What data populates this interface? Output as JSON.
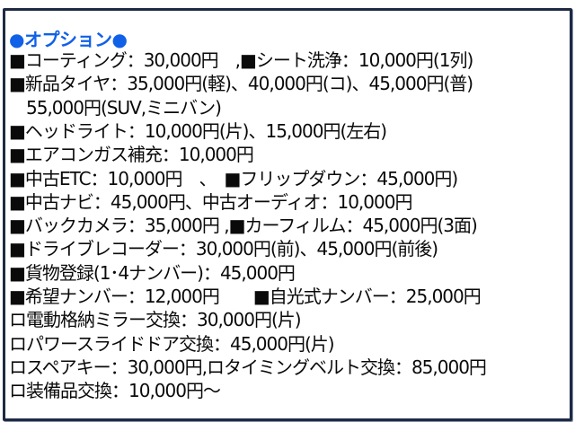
{
  "title": "●オプション●",
  "accent_color": "#1060e8",
  "lines": [
    "■コーティング：30,000円　,■シート洗浄：10,000円(1列)",
    "■新品タイヤ：35,000円(軽)、40,000円(コ)、45,000円(普)",
    "　55,000円(SUV,ミニバン)",
    "■ヘッドライト：10,000円(片)、15,000円(左右)",
    "■エアコンガス補充：10,000円",
    "■中古ETC：10,000円　、　■フリップダウン：45,000円)",
    "■中古ナビ：45,000円、中古オーディオ：10,000円",
    "■バックカメラ：35,000円 ,■カーフィルム：45,000円(3面)",
    "■ドライブレコーダー：30,000円(前)、45,000円(前後)",
    "■貨物登録(1･4ナンバー)：45,000円",
    "■希望ナンバー：12,000円　　■自光式ナンバー：25,000円",
    "ロ電動格納ミラー交換：30,000円(片)",
    "ロパワースライドドア交換：45,000円(片)",
    "ロスペアキー：30,000円,ロタイミングベルト交換：85,000円",
    "ロ装備品交換：10,000円～"
  ]
}
